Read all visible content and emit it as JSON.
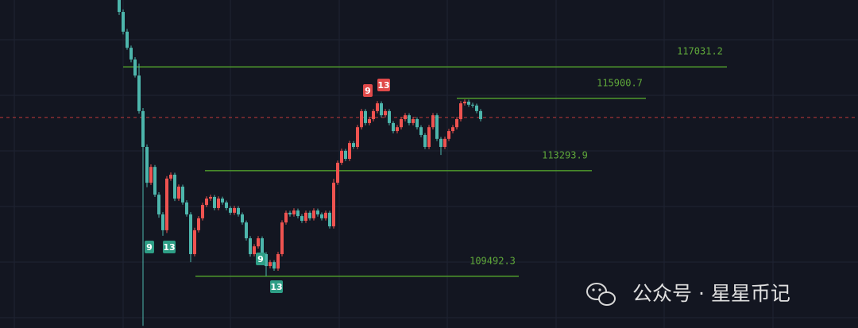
{
  "chart_data": {
    "type": "candlestick",
    "ylim": [
      107630,
      119440
    ],
    "open": [
      119440,
      119010,
      118300,
      117720,
      117300,
      116720,
      115440,
      114150,
      112860,
      113430,
      112430,
      111720,
      111150,
      113010,
      113150,
      112290,
      112720,
      112150,
      111720,
      110290,
      111150,
      111580,
      112060,
      112290,
      112350,
      111950,
      112290,
      112150,
      111950,
      111780,
      111950,
      111720,
      111430,
      110860,
      110290,
      110570,
      110860,
      110290,
      109860,
      110000,
      109770,
      110290,
      111430,
      111780,
      111720,
      111860,
      111660,
      111490,
      111780,
      111580,
      111860,
      111720,
      111580,
      111780,
      111290,
      112860,
      113580,
      114010,
      113720,
      114290,
      114150,
      114860,
      115440,
      115010,
      115150,
      115440,
      115720,
      115290,
      115440,
      115010,
      114720,
      114860,
      115150,
      115290,
      115010,
      115150,
      114860,
      114580,
      114150,
      114860,
      115290,
      114440,
      114150,
      114440,
      114720,
      114860,
      115150,
      115720,
      115780,
      115670,
      115640,
      115440
    ],
    "high": [
      119440,
      119100,
      118400,
      117800,
      117380,
      117150,
      115550,
      114240,
      113520,
      113500,
      112520,
      111800,
      113100,
      113230,
      113220,
      112800,
      112790,
      112230,
      111800,
      111240,
      111660,
      112140,
      112370,
      112430,
      112420,
      112370,
      112360,
      112220,
      112020,
      112030,
      112020,
      111790,
      111500,
      110940,
      110650,
      110940,
      110930,
      110360,
      110080,
      110070,
      110370,
      111510,
      111860,
      111850,
      111940,
      111930,
      111730,
      111860,
      111850,
      111940,
      111930,
      111790,
      111860,
      111850,
      113000,
      113660,
      114090,
      114080,
      114370,
      114360,
      114940,
      115520,
      115510,
      115230,
      115520,
      115800,
      115790,
      115520,
      115510,
      115080,
      114940,
      115230,
      115370,
      115360,
      115230,
      115220,
      114930,
      114650,
      114940,
      115370,
      115360,
      114510,
      114520,
      114800,
      114940,
      115230,
      115800,
      115860,
      115850,
      115740,
      115710,
      115510
    ],
    "low": [
      118900,
      118200,
      117650,
      117200,
      116650,
      115350,
      107710,
      112700,
      112780,
      112350,
      111600,
      110950,
      111050,
      112930,
      112200,
      112210,
      112070,
      111640,
      110000,
      110210,
      111070,
      111500,
      111980,
      112210,
      111870,
      111870,
      112070,
      111870,
      111700,
      111700,
      111640,
      111350,
      110780,
      110200,
      110210,
      110490,
      110210,
      109500,
      109780,
      109690,
      109690,
      110210,
      111350,
      111640,
      111640,
      111580,
      111410,
      111410,
      111500,
      111500,
      111640,
      111500,
      111500,
      111210,
      111210,
      112780,
      113500,
      113640,
      113640,
      114070,
      114070,
      114780,
      114930,
      114930,
      115070,
      115360,
      115210,
      115210,
      114930,
      114640,
      114640,
      114780,
      115070,
      114930,
      114930,
      114780,
      114500,
      114070,
      114070,
      114780,
      114360,
      113860,
      114070,
      114360,
      114640,
      114780,
      115070,
      115640,
      115590,
      115560,
      115360,
      115070
    ],
    "close": [
      119010,
      118300,
      117720,
      117300,
      116720,
      115440,
      114150,
      112860,
      113430,
      112430,
      111720,
      111150,
      113010,
      113150,
      112290,
      112720,
      112150,
      111720,
      110290,
      111150,
      111580,
      112060,
      112290,
      112350,
      111950,
      112290,
      112150,
      111950,
      111780,
      111950,
      111720,
      111430,
      110860,
      110290,
      110570,
      110860,
      110290,
      109860,
      110000,
      109770,
      110290,
      111430,
      111780,
      111720,
      111860,
      111660,
      111490,
      111780,
      111580,
      111860,
      111720,
      111580,
      111780,
      111290,
      112860,
      113580,
      114010,
      113720,
      114290,
      114150,
      114860,
      115440,
      115010,
      115150,
      115440,
      115720,
      115290,
      115440,
      115010,
      114720,
      114860,
      115150,
      115290,
      115010,
      115150,
      114860,
      114580,
      114150,
      114860,
      115290,
      114440,
      114150,
      114440,
      114720,
      114860,
      115150,
      115720,
      115780,
      115670,
      115640,
      115440,
      115150
    ],
    "up_color": "#ef5350",
    "down_color": "#4db6ac",
    "levels": [
      117031.2,
      115900.7,
      113293.9,
      109492.3
    ],
    "level_color": "#4f9a2c",
    "current_price": 115210,
    "markers": [
      {
        "index": 7,
        "label": 9,
        "side": "below"
      },
      {
        "index": 12,
        "label": 13,
        "side": "below"
      },
      {
        "index": 35,
        "label": 9,
        "side": "below"
      },
      {
        "index": 39,
        "label": 13,
        "side": "below"
      },
      {
        "index": 62,
        "label": 9,
        "side": "above"
      },
      {
        "index": 66,
        "label": 13,
        "side": "above"
      }
    ]
  },
  "watermark": "公众号 · 星星币记"
}
